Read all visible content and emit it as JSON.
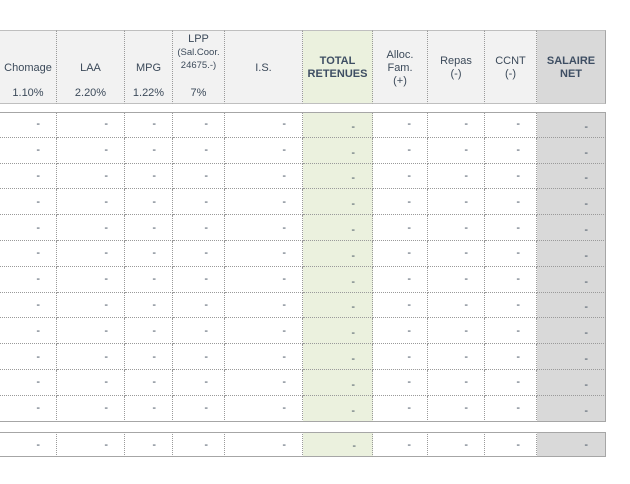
{
  "columns": [
    {
      "label": [
        "Chomage"
      ],
      "rate": "1.10%"
    },
    {
      "label": [
        "LAA"
      ],
      "rate": "2.20%"
    },
    {
      "label": [
        "MPG"
      ],
      "rate": "1.22%"
    },
    {
      "label": [
        "LPP",
        "(Sal.Coor.",
        "24675.-)"
      ],
      "rate": "7%"
    },
    {
      "label": [
        "I.S."
      ],
      "rate": ""
    },
    {
      "label": [
        "TOTAL",
        "RETENUES"
      ],
      "rate": ""
    },
    {
      "label": [
        "Alloc.",
        "Fam.",
        "(+)"
      ],
      "rate": ""
    },
    {
      "label": [
        "Repas",
        "(-)"
      ],
      "rate": ""
    },
    {
      "label": [
        "CCNT",
        "(-)"
      ],
      "rate": ""
    },
    {
      "label": [
        "SALAIRE",
        "NET"
      ],
      "rate": ""
    }
  ],
  "rows": [
    [
      "-",
      "-",
      "-",
      "-",
      "-",
      "-",
      "-",
      "-",
      "-",
      "-"
    ],
    [
      "-",
      "-",
      "-",
      "-",
      "-",
      "-",
      "-",
      "-",
      "-",
      "-"
    ],
    [
      "-",
      "-",
      "-",
      "-",
      "-",
      "-",
      "-",
      "-",
      "-",
      "-"
    ],
    [
      "-",
      "-",
      "-",
      "-",
      "-",
      "-",
      "-",
      "-",
      "-",
      "-"
    ],
    [
      "-",
      "-",
      "-",
      "-",
      "-",
      "-",
      "-",
      "-",
      "-",
      "-"
    ],
    [
      "-",
      "-",
      "-",
      "-",
      "-",
      "-",
      "-",
      "-",
      "-",
      "-"
    ],
    [
      "-",
      "-",
      "-",
      "-",
      "-",
      "-",
      "-",
      "-",
      "-",
      "-"
    ],
    [
      "-",
      "-",
      "-",
      "-",
      "-",
      "-",
      "-",
      "-",
      "-",
      "-"
    ],
    [
      "-",
      "-",
      "-",
      "-",
      "-",
      "-",
      "-",
      "-",
      "-",
      "-"
    ],
    [
      "-",
      "-",
      "-",
      "-",
      "-",
      "-",
      "-",
      "-",
      "-",
      "-"
    ],
    [
      "-",
      "-",
      "-",
      "-",
      "-",
      "-",
      "-",
      "-",
      "-",
      "-"
    ],
    [
      "-",
      "-",
      "-",
      "-",
      "-",
      "-",
      "-",
      "-",
      "-",
      "-"
    ]
  ],
  "totals": [
    "-",
    "-",
    "-",
    "-",
    "-",
    "-",
    "-",
    "-",
    "-",
    "-"
  ],
  "colors": {
    "header_bg": "#f2f2f2",
    "total_retenues_bg": "#ebf1de",
    "salaire_net_bg": "#d9d9d9",
    "header_text": "#3c4a5a"
  }
}
